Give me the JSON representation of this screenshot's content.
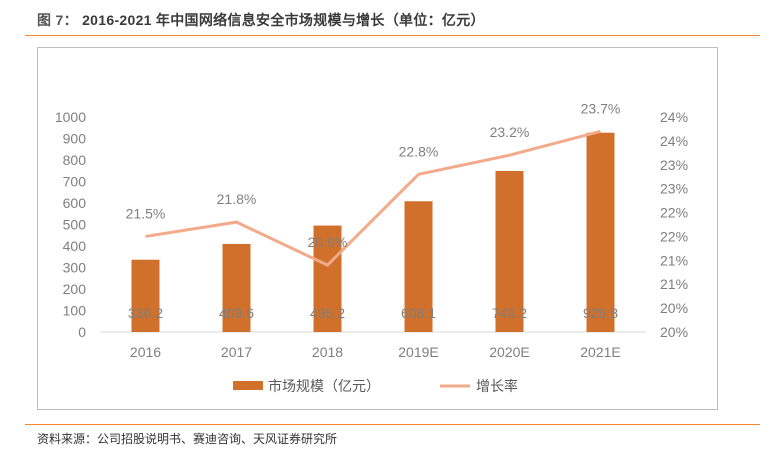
{
  "title": {
    "figure": "图 7：",
    "text": "2016-2021 年中国网络信息安全市场规模与增长（单位：亿元）"
  },
  "source": "资料来源：公司招股说明书、赛迪咨询、天风证券研究所",
  "chart_data": {
    "type": "bar+line",
    "categories": [
      "2016",
      "2017",
      "2018",
      "2019E",
      "2020E",
      "2021E"
    ],
    "series": [
      {
        "name": "市场规模（亿元）",
        "type": "bar",
        "axis": "left",
        "color": "#d0702a",
        "values": [
          336.2,
          409.6,
          495.2,
          608.1,
          749.2,
          926.8
        ],
        "labels": [
          "336.2",
          "409.6",
          "495.2",
          "608.1",
          "749.2",
          "926.8"
        ]
      },
      {
        "name": "增长率",
        "type": "line",
        "axis": "right",
        "color": "#f2aa8a",
        "values": [
          21.5,
          21.8,
          20.9,
          22.8,
          23.2,
          23.7
        ],
        "labels": [
          "21.5%",
          "21.8%",
          "20.9%",
          "22.8%",
          "23.2%",
          "23.7%"
        ]
      }
    ],
    "left_axis": {
      "range": [
        0,
        1000
      ],
      "ticks": [
        "0",
        "100",
        "200",
        "300",
        "400",
        "500",
        "600",
        "700",
        "800",
        "900",
        "1000"
      ]
    },
    "right_axis": {
      "range": [
        19.5,
        24
      ],
      "ticks": [
        "20%",
        "20%",
        "21%",
        "21%",
        "22%",
        "22%",
        "23%",
        "23%",
        "24%",
        "24%"
      ]
    },
    "grid": false,
    "legend": "bottom"
  }
}
